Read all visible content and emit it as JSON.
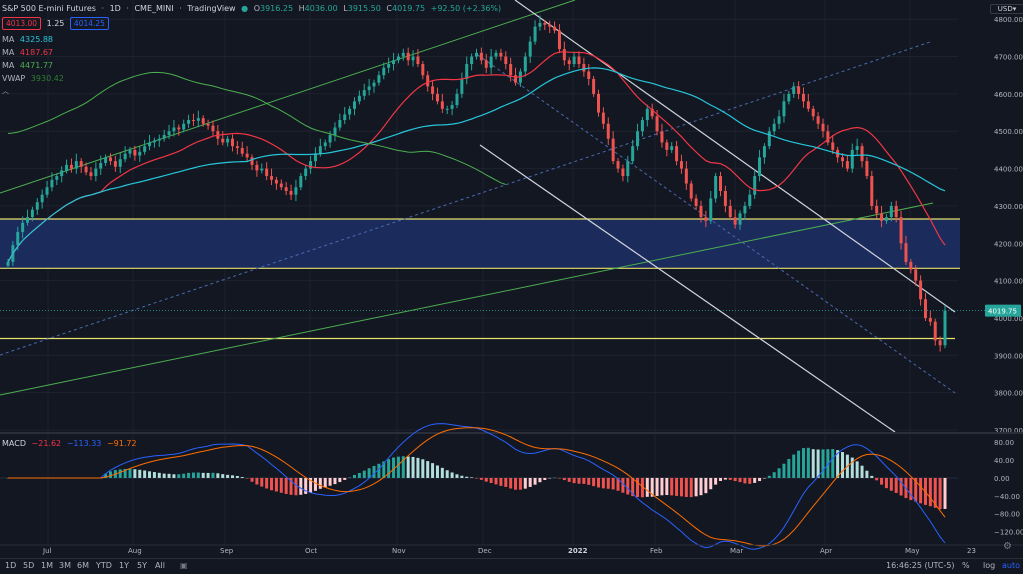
{
  "symbol": {
    "name": "S&P 500 E-mini Futures",
    "interval": "1D",
    "exchange": "CME_MINI",
    "source": "TradingView"
  },
  "ohlc": {
    "open_label": "O",
    "open": "3916.25",
    "high_label": "H",
    "high": "4036.00",
    "low_label": "L",
    "low": "3915.50",
    "close_label": "C",
    "close": "4019.75",
    "change": "+92.50 (+2.36%)"
  },
  "quote": {
    "bid": "4013.00",
    "spread": "1.25",
    "ask": "4014.25"
  },
  "indicators": [
    {
      "name": "MA",
      "value": "4325.88",
      "color": "#26c6da"
    },
    {
      "name": "MA",
      "value": "4187.67",
      "color": "#f23645"
    },
    {
      "name": "MA",
      "value": "4471.77",
      "color": "#4caf50"
    },
    {
      "name": "VWAP",
      "value": "3930.42",
      "color": "#2e7d32"
    }
  ],
  "currency": "USD",
  "last_price": "4019.75",
  "price_axis": [
    "4800.00",
    "4700.00",
    "4600.00",
    "4500.00",
    "4400.00",
    "4300.00",
    "4200.00",
    "4100.00",
    "4000.00",
    "3900.00",
    "3800.00",
    "3700.00"
  ],
  "time_axis": [
    "Jul",
    "Aug",
    "Sep",
    "Oct",
    "Nov",
    "Dec",
    "2022",
    "Feb",
    "Mar",
    "Apr",
    "May",
    "23"
  ],
  "macd": {
    "label": "MACD",
    "hist": "−21.62",
    "macd": "−113.33",
    "signal": "−91.72",
    "axis": [
      "80.00",
      "40.00",
      "0.00",
      "−40.00",
      "−80.00",
      "−120.00"
    ]
  },
  "bottom": {
    "ranges": [
      "1D",
      "5D",
      "1M",
      "3M",
      "6M",
      "YTD",
      "1Y",
      "5Y",
      "All"
    ],
    "time": "16:46:25 (UTC-5)",
    "percent": "%",
    "log": "log",
    "auto": "auto"
  },
  "chart_data": {
    "type": "candlestick",
    "ylim": [
      3700,
      4830
    ],
    "levels": [
      4265,
      4133,
      3945
    ],
    "closes": [
      4150,
      4195,
      4230,
      4255,
      4270,
      4290,
      4310,
      4330,
      4350,
      4370,
      4380,
      4395,
      4410,
      4400,
      4420,
      4405,
      4390,
      4380,
      4400,
      4415,
      4430,
      4420,
      4405,
      4425,
      4440,
      4450,
      4435,
      4445,
      4460,
      4470,
      4475,
      4480,
      4490,
      4500,
      4510,
      4505,
      4520,
      4530,
      4528,
      4535,
      4520,
      4515,
      4500,
      4480,
      4470,
      4480,
      4460,
      4455,
      4440,
      4430,
      4410,
      4395,
      4400,
      4380,
      4370,
      4360,
      4350,
      4340,
      4330,
      4350,
      4380,
      4400,
      4420,
      4440,
      4460,
      4470,
      4490,
      4510,
      4530,
      4545,
      4560,
      4580,
      4595,
      4610,
      4620,
      4630,
      4650,
      4670,
      4680,
      4690,
      4700,
      4710,
      4690,
      4700,
      4680,
      4650,
      4620,
      4600,
      4580,
      4560,
      4560,
      4570,
      4600,
      4640,
      4680,
      4700,
      4710,
      4690,
      4670,
      4700,
      4710,
      4700,
      4680,
      4650,
      4630,
      4660,
      4700,
      4740,
      4780,
      4790,
      4785,
      4780,
      4770,
      4720,
      4690,
      4680,
      4700,
      4680,
      4660,
      4640,
      4600,
      4550,
      4520,
      4480,
      4420,
      4400,
      4380,
      4420,
      4460,
      4500,
      4530,
      4560,
      4540,
      4500,
      4470,
      4450,
      4460,
      4420,
      4400,
      4360,
      4320,
      4300,
      4270,
      4260,
      4320,
      4380,
      4340,
      4300,
      4270,
      4250,
      4280,
      4300,
      4330,
      4380,
      4430,
      4460,
      4500,
      4520,
      4540,
      4580,
      4600,
      4620,
      4600,
      4580,
      4560,
      4540,
      4520,
      4500,
      4470,
      4450,
      4430,
      4420,
      4400,
      4450,
      4460,
      4420,
      4380,
      4300,
      4280,
      4260,
      4270,
      4300,
      4270,
      4200,
      4150,
      4130,
      4100,
      4050,
      4000,
      3990,
      3940,
      3927,
      4019.75
    ]
  }
}
